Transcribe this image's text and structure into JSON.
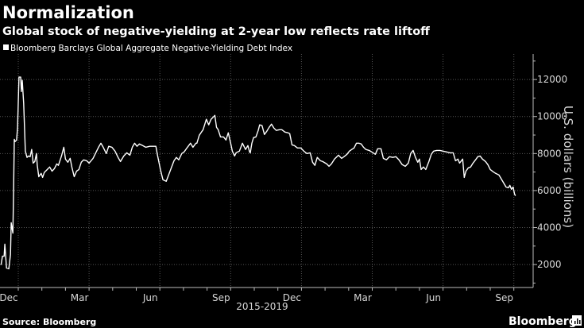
{
  "chart_data": {
    "type": "line",
    "title": "Normalization",
    "subtitle": "Global stock of negative-yielding at 2-year low reflects rate liftoff",
    "legend": [
      {
        "name": "Bloomberg Barclays Global Aggregate Negative-Yielding Debt Index",
        "color": "#ffffff"
      }
    ],
    "legend_placement": "top-left",
    "xlabel": "2015-2019",
    "ylabel": "U.S. dollars (billions)",
    "x_units": "months since Dec 1 (first year)",
    "xlim": [
      -0.77,
      21.8
    ],
    "ylim": [
      760,
      13380
    ],
    "yticks": [
      2000,
      4000,
      6000,
      8000,
      10000,
      12000
    ],
    "ytick_labels": [
      "2000",
      "4000",
      "6000",
      "8000",
      "10000",
      "12000"
    ],
    "xticks": [
      {
        "month": 0,
        "label": "Dec"
      },
      {
        "month": 3,
        "label": "Mar"
      },
      {
        "month": 6,
        "label": "Jun"
      },
      {
        "month": 9,
        "label": "Sep"
      },
      {
        "month": 12,
        "label": "Dec"
      },
      {
        "month": 15,
        "label": "Mar"
      },
      {
        "month": 18,
        "label": "Jun"
      },
      {
        "month": 21,
        "label": "Sep"
      }
    ],
    "grid": true,
    "y_axis_side": "right",
    "series": [
      {
        "name": "Bloomberg Barclays Global Aggregate Negative-Yielding Debt Index",
        "color": "#ffffff",
        "points": [
          [
            -0.73,
            1980
          ],
          [
            -0.67,
            2450
          ],
          [
            -0.6,
            2450
          ],
          [
            -0.57,
            3100
          ],
          [
            -0.5,
            1810
          ],
          [
            -0.4,
            1770
          ],
          [
            -0.33,
            2540
          ],
          [
            -0.3,
            4260
          ],
          [
            -0.23,
            3700
          ],
          [
            -0.2,
            5980
          ],
          [
            -0.17,
            8770
          ],
          [
            -0.13,
            8650
          ],
          [
            -0.07,
            8730
          ],
          [
            -0.03,
            9420
          ],
          [
            0.03,
            12130
          ],
          [
            0.1,
            12130
          ],
          [
            0.13,
            11350
          ],
          [
            0.17,
            11960
          ],
          [
            0.23,
            10710
          ],
          [
            0.3,
            8130
          ],
          [
            0.37,
            7790
          ],
          [
            0.43,
            7870
          ],
          [
            0.5,
            7830
          ],
          [
            0.57,
            8220
          ],
          [
            0.63,
            7480
          ],
          [
            0.7,
            7570
          ],
          [
            0.77,
            8000
          ],
          [
            0.8,
            7400
          ],
          [
            0.87,
            6750
          ],
          [
            0.97,
            6930
          ],
          [
            1.03,
            6710
          ],
          [
            1.1,
            6970
          ],
          [
            1.23,
            7140
          ],
          [
            1.33,
            7270
          ],
          [
            1.43,
            7050
          ],
          [
            1.53,
            7180
          ],
          [
            1.63,
            7440
          ],
          [
            1.7,
            7360
          ],
          [
            1.83,
            7870
          ],
          [
            1.93,
            8340
          ],
          [
            2.0,
            7700
          ],
          [
            2.1,
            7530
          ],
          [
            2.2,
            7740
          ],
          [
            2.27,
            7270
          ],
          [
            2.37,
            6750
          ],
          [
            2.47,
            7050
          ],
          [
            2.57,
            7140
          ],
          [
            2.67,
            7530
          ],
          [
            2.77,
            7660
          ],
          [
            2.9,
            7610
          ],
          [
            3.0,
            7480
          ],
          [
            3.17,
            7740
          ],
          [
            3.27,
            8000
          ],
          [
            3.4,
            8340
          ],
          [
            3.5,
            8560
          ],
          [
            3.6,
            8340
          ],
          [
            3.73,
            8000
          ],
          [
            3.83,
            8390
          ],
          [
            3.97,
            8340
          ],
          [
            4.1,
            8130
          ],
          [
            4.23,
            7790
          ],
          [
            4.33,
            7570
          ],
          [
            4.47,
            7870
          ],
          [
            4.6,
            8040
          ],
          [
            4.73,
            7910
          ],
          [
            4.83,
            8340
          ],
          [
            4.93,
            8560
          ],
          [
            5.03,
            8390
          ],
          [
            5.13,
            8520
          ],
          [
            5.27,
            8430
          ],
          [
            5.4,
            8340
          ],
          [
            5.57,
            8390
          ],
          [
            5.83,
            8390
          ],
          [
            5.9,
            7910
          ],
          [
            6.03,
            7100
          ],
          [
            6.13,
            6580
          ],
          [
            6.27,
            6500
          ],
          [
            6.37,
            6840
          ],
          [
            6.5,
            7270
          ],
          [
            6.6,
            7610
          ],
          [
            6.7,
            7790
          ],
          [
            6.8,
            7660
          ],
          [
            6.93,
            8000
          ],
          [
            7.03,
            8090
          ],
          [
            7.17,
            8340
          ],
          [
            7.3,
            8560
          ],
          [
            7.4,
            8340
          ],
          [
            7.53,
            8560
          ],
          [
            7.57,
            8560
          ],
          [
            7.67,
            8990
          ],
          [
            7.83,
            9290
          ],
          [
            7.97,
            9850
          ],
          [
            8.07,
            9550
          ],
          [
            8.17,
            9850
          ],
          [
            8.27,
            9980
          ],
          [
            8.33,
            10060
          ],
          [
            8.4,
            9420
          ],
          [
            8.47,
            9290
          ],
          [
            8.57,
            8900
          ],
          [
            8.7,
            8900
          ],
          [
            8.8,
            8730
          ],
          [
            8.9,
            9120
          ],
          [
            9.0,
            8560
          ],
          [
            9.07,
            8130
          ],
          [
            9.17,
            7870
          ],
          [
            9.23,
            8040
          ],
          [
            9.37,
            8130
          ],
          [
            9.5,
            8560
          ],
          [
            9.63,
            8220
          ],
          [
            9.73,
            8430
          ],
          [
            9.8,
            8090
          ],
          [
            9.83,
            8040
          ],
          [
            9.9,
            8560
          ],
          [
            9.97,
            8860
          ],
          [
            10.07,
            8900
          ],
          [
            10.17,
            9250
          ],
          [
            10.23,
            9550
          ],
          [
            10.33,
            9510
          ],
          [
            10.43,
            9030
          ],
          [
            10.53,
            9200
          ],
          [
            10.63,
            9420
          ],
          [
            10.73,
            9590
          ],
          [
            10.83,
            9380
          ],
          [
            10.93,
            9250
          ],
          [
            11.07,
            9290
          ],
          [
            11.17,
            9290
          ],
          [
            11.3,
            9160
          ],
          [
            11.43,
            9120
          ],
          [
            11.5,
            9080
          ],
          [
            11.6,
            8470
          ],
          [
            11.7,
            8430
          ],
          [
            11.83,
            8300
          ],
          [
            11.97,
            8300
          ],
          [
            12.1,
            8130
          ],
          [
            12.23,
            8000
          ],
          [
            12.37,
            8040
          ],
          [
            12.47,
            7530
          ],
          [
            12.57,
            7360
          ],
          [
            12.67,
            7790
          ],
          [
            12.8,
            7610
          ],
          [
            12.9,
            7570
          ],
          [
            13.07,
            7440
          ],
          [
            13.17,
            7310
          ],
          [
            13.27,
            7440
          ],
          [
            13.4,
            7700
          ],
          [
            13.57,
            7910
          ],
          [
            13.7,
            7740
          ],
          [
            13.8,
            7830
          ],
          [
            13.93,
            7960
          ],
          [
            14.03,
            8130
          ],
          [
            14.13,
            8220
          ],
          [
            14.23,
            8300
          ],
          [
            14.33,
            8560
          ],
          [
            14.43,
            8560
          ],
          [
            14.53,
            8520
          ],
          [
            14.63,
            8340
          ],
          [
            14.73,
            8220
          ],
          [
            14.87,
            8170
          ],
          [
            14.97,
            8090
          ],
          [
            15.13,
            7960
          ],
          [
            15.23,
            8260
          ],
          [
            15.37,
            8260
          ],
          [
            15.47,
            7740
          ],
          [
            15.6,
            7660
          ],
          [
            15.73,
            7830
          ],
          [
            15.87,
            7790
          ],
          [
            16.0,
            7830
          ],
          [
            16.13,
            7660
          ],
          [
            16.27,
            7400
          ],
          [
            16.4,
            7310
          ],
          [
            16.53,
            7480
          ],
          [
            16.63,
            8000
          ],
          [
            16.73,
            8170
          ],
          [
            16.83,
            7790
          ],
          [
            16.93,
            7530
          ],
          [
            17.0,
            7700
          ],
          [
            17.07,
            7140
          ],
          [
            17.17,
            7270
          ],
          [
            17.27,
            7140
          ],
          [
            17.4,
            7570
          ],
          [
            17.5,
            7960
          ],
          [
            17.6,
            8130
          ],
          [
            17.73,
            8170
          ],
          [
            17.87,
            8170
          ],
          [
            18.0,
            8130
          ],
          [
            18.13,
            8090
          ],
          [
            18.3,
            8040
          ],
          [
            18.43,
            8040
          ],
          [
            18.53,
            7610
          ],
          [
            18.63,
            7700
          ],
          [
            18.7,
            7480
          ],
          [
            18.83,
            7700
          ],
          [
            18.9,
            6710
          ],
          [
            18.97,
            7050
          ],
          [
            19.07,
            7230
          ],
          [
            19.17,
            7270
          ],
          [
            19.27,
            7480
          ],
          [
            19.4,
            7700
          ],
          [
            19.47,
            7830
          ],
          [
            19.57,
            7870
          ],
          [
            19.67,
            7700
          ],
          [
            19.8,
            7570
          ],
          [
            19.9,
            7400
          ],
          [
            20.0,
            7140
          ],
          [
            20.13,
            7010
          ],
          [
            20.23,
            6930
          ],
          [
            20.37,
            6840
          ],
          [
            20.47,
            6620
          ],
          [
            20.57,
            6410
          ],
          [
            20.67,
            6190
          ],
          [
            20.77,
            6150
          ],
          [
            20.83,
            6280
          ],
          [
            20.9,
            6070
          ],
          [
            20.97,
            6190
          ],
          [
            21.03,
            5810
          ],
          [
            21.07,
            5720
          ]
        ]
      }
    ]
  },
  "footer": {
    "source": "Source: Bloomberg",
    "brand": "Bloomberg"
  }
}
